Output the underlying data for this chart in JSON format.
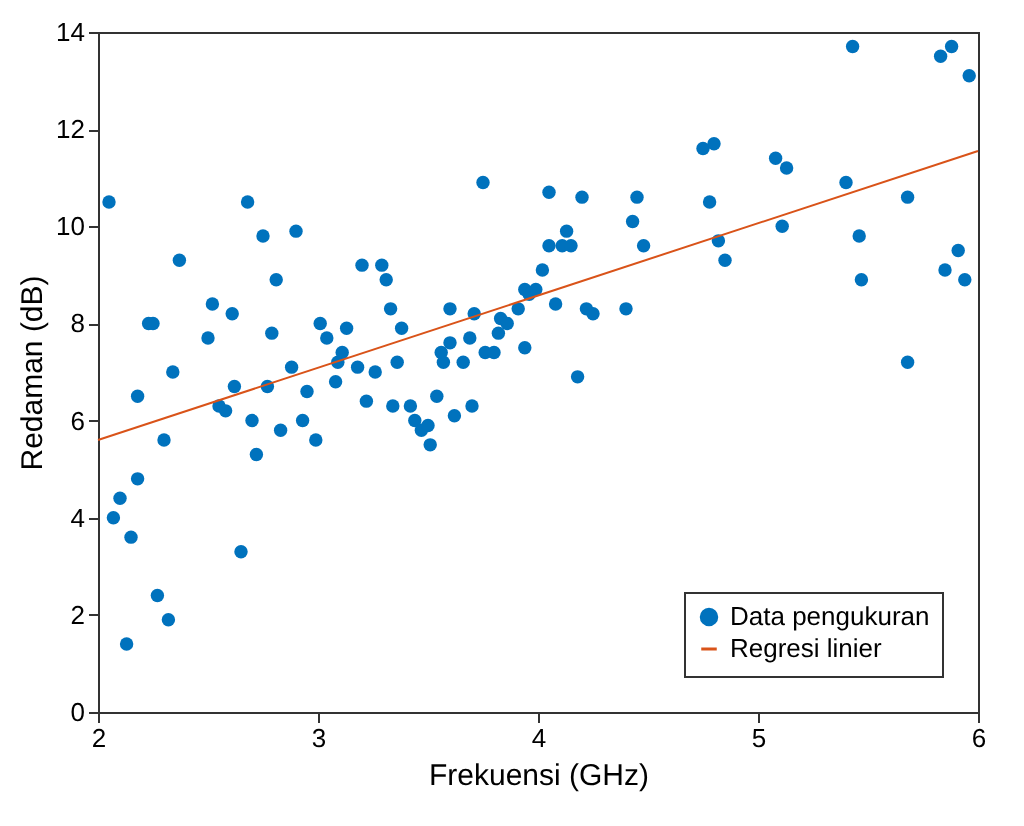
{
  "chart_data": {
    "type": "scatter",
    "xlabel": "Frekuensi (GHz)",
    "ylabel": "Redaman (dB)",
    "xlim": [
      2,
      6
    ],
    "xticks": [
      2,
      3,
      4,
      5,
      6
    ],
    "ylim": [
      0,
      14
    ],
    "yticks": [
      0,
      2,
      4,
      6,
      8,
      10,
      12,
      14
    ],
    "grid": false,
    "legend": "bottom right",
    "series": [
      {
        "name": "Data pengukuran",
        "type": "scatter",
        "marker": "circle",
        "color": "#0072bd",
        "x": [
          2.05,
          2.07,
          2.1,
          2.13,
          2.15,
          2.18,
          2.18,
          2.23,
          2.25,
          2.27,
          2.3,
          2.32,
          2.34,
          2.37,
          2.5,
          2.52,
          2.55,
          2.58,
          2.61,
          2.62,
          2.65,
          2.68,
          2.7,
          2.72,
          2.75,
          2.77,
          2.79,
          2.81,
          2.83,
          2.88,
          2.9,
          2.93,
          2.95,
          2.99,
          3.01,
          3.04,
          3.08,
          3.09,
          3.11,
          3.13,
          3.18,
          3.2,
          3.22,
          3.26,
          3.29,
          3.31,
          3.33,
          3.34,
          3.36,
          3.38,
          3.42,
          3.44,
          3.47,
          3.5,
          3.51,
          3.54,
          3.56,
          3.57,
          3.6,
          3.6,
          3.62,
          3.66,
          3.69,
          3.71,
          3.7,
          3.75,
          3.76,
          3.8,
          3.82,
          3.83,
          3.86,
          3.91,
          3.94,
          3.94,
          3.96,
          3.99,
          4.02,
          4.05,
          4.05,
          4.08,
          4.11,
          4.13,
          4.15,
          4.18,
          4.2,
          4.22,
          4.25,
          4.4,
          4.43,
          4.45,
          4.48,
          4.75,
          4.8,
          4.78,
          4.82,
          4.85,
          5.08,
          5.13,
          5.11,
          5.4,
          5.43,
          5.46,
          5.47,
          5.68,
          5.68,
          5.83,
          5.88,
          5.85,
          5.91,
          5.94,
          5.96
        ],
        "values": [
          10.5,
          4.0,
          4.4,
          1.4,
          3.6,
          4.8,
          6.5,
          8.0,
          8.0,
          2.4,
          5.6,
          1.9,
          7.0,
          9.3,
          7.7,
          8.4,
          6.3,
          6.2,
          8.2,
          6.7,
          3.3,
          10.5,
          6.0,
          5.3,
          9.8,
          6.7,
          7.8,
          8.9,
          5.8,
          7.1,
          9.9,
          6.0,
          6.6,
          5.6,
          8.0,
          7.7,
          6.8,
          7.2,
          7.4,
          7.9,
          7.1,
          9.2,
          6.4,
          7.0,
          9.2,
          8.9,
          8.3,
          6.3,
          7.2,
          7.9,
          6.3,
          6.0,
          5.8,
          5.9,
          5.5,
          6.5,
          7.4,
          7.2,
          8.3,
          7.6,
          6.1,
          7.2,
          7.7,
          8.2,
          6.3,
          10.9,
          7.4,
          7.4,
          7.8,
          8.1,
          8.0,
          8.3,
          8.7,
          7.5,
          8.6,
          8.7,
          9.1,
          10.7,
          9.6,
          8.4,
          9.6,
          9.9,
          9.6,
          6.9,
          10.6,
          8.3,
          8.2,
          8.3,
          10.1,
          10.6,
          9.6,
          11.6,
          11.7,
          10.5,
          9.7,
          9.3,
          11.4,
          11.2,
          10.0,
          10.9,
          13.7,
          9.8,
          8.9,
          10.6,
          7.2,
          13.5,
          13.7,
          9.1,
          9.5,
          8.9,
          13.1
        ]
      },
      {
        "name": "Regresi linier",
        "type": "line",
        "color": "#d95319",
        "x": [
          2,
          6
        ],
        "values": [
          5.6,
          11.55
        ]
      }
    ]
  }
}
